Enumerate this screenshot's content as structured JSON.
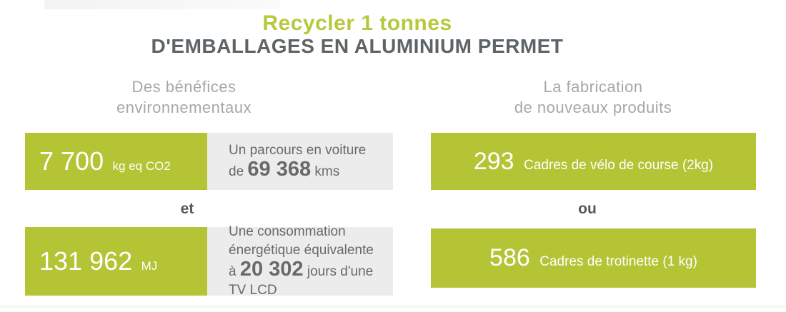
{
  "title": {
    "line1": "Recycler 1 tonnes",
    "line2": "D'EMBALLAGES EN ALUMINIUM PERMET"
  },
  "columns": {
    "left": {
      "header_line1": "Des bénéfices",
      "header_line2": "environnementaux"
    },
    "right": {
      "header_line1": "La fabrication",
      "header_line2": "de nouveaux produits"
    }
  },
  "benefits": [
    {
      "value": "7 700",
      "unit": "kg eq CO2",
      "equivalent": {
        "prefix": "Un parcours en voiture de",
        "value": "69 368",
        "suffix": "kms"
      }
    },
    {
      "value": "131 962",
      "unit": "MJ",
      "equivalent": {
        "prefix": "Une consommation énergétique équivalente à",
        "value": "20 302",
        "suffix": "jours d'une TV LCD"
      }
    }
  ],
  "products": [
    {
      "value": "293",
      "label": "Cadres de vélo de course (2kg)"
    },
    {
      "value": "586",
      "label": "Cadres de trotinette (1 kg)"
    }
  ],
  "connectors": {
    "left": "et",
    "right": "ou"
  },
  "colors": {
    "green": "#b4c434",
    "title_green": "#b6c93c",
    "dark_gray": "#5d6367",
    "mid_gray": "#67696b",
    "connector_gray": "#55585a",
    "light_gray_text": "#a7a7a7",
    "box_gray": "#ececec"
  }
}
